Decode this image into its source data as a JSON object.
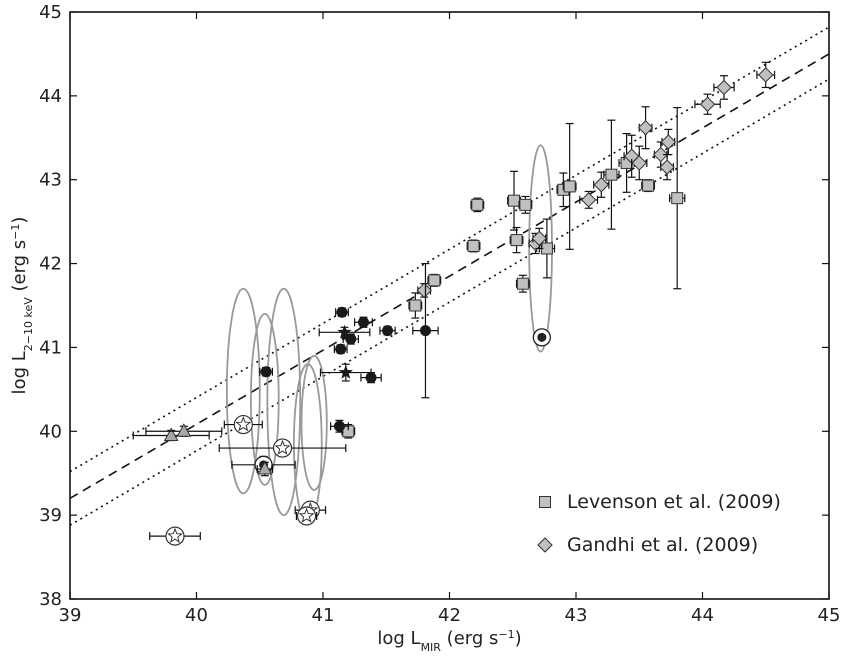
{
  "chart_data": {
    "type": "scatter",
    "title": "",
    "xlabel": {
      "base": "log L",
      "sub": "MIR",
      "unit": " (erg s",
      "exp": "−1",
      "close": ")"
    },
    "ylabel": {
      "base": "log L",
      "sub": "2−10  keV",
      "unit": " (erg s",
      "exp": "−1",
      "close": ")"
    },
    "xlim": [
      39,
      45
    ],
    "ylim": [
      38,
      45
    ],
    "xticks": [
      "39",
      "40",
      "41",
      "42",
      "43",
      "44",
      "45"
    ],
    "yticks": [
      "38",
      "39",
      "40",
      "41",
      "42",
      "43",
      "44",
      "45"
    ],
    "grid": false,
    "legend_position": "lower-right",
    "relations": [
      {
        "style": "dashed",
        "x": [
          39,
          45
        ],
        "y": [
          39.2,
          44.5
        ]
      },
      {
        "style": "dotted",
        "x": [
          39,
          45
        ],
        "y": [
          39.52,
          44.82
        ]
      },
      {
        "style": "dotted",
        "x": [
          39,
          45
        ],
        "y": [
          38.88,
          44.2
        ]
      }
    ],
    "series": [
      {
        "name": "Levenson et al. (2009)",
        "marker": "square",
        "color": "#c0c0c0",
        "points": [
          {
            "x": 42.22,
            "y": 42.7,
            "xerr": 0.05,
            "yerr": 0.08
          },
          {
            "x": 42.19,
            "y": 42.21,
            "xerr": 0.05,
            "yerr": 0.07
          },
          {
            "x": 42.51,
            "y": 42.75,
            "xerr": 0.05,
            "yerr": 0.35
          },
          {
            "x": 42.6,
            "y": 42.7,
            "xerr": 0.05,
            "yerr": 0.1
          },
          {
            "x": 42.53,
            "y": 42.28,
            "xerr": 0.05,
            "yerr": 0.15
          },
          {
            "x": 42.58,
            "y": 41.76,
            "xerr": 0.05,
            "yerr": 0.1
          },
          {
            "x": 42.77,
            "y": 42.18,
            "xerr": 0.06,
            "yerr": 0.35
          },
          {
            "x": 42.9,
            "y": 42.88,
            "xerr": 0.05,
            "yerr": 0.2
          },
          {
            "x": 42.95,
            "y": 42.92,
            "xerr": 0.05,
            "yerr": 0.75
          },
          {
            "x": 43.28,
            "y": 43.06,
            "xerr": 0.06,
            "yerr": 0.65
          },
          {
            "x": 43.4,
            "y": 43.2,
            "xerr": 0.06,
            "yerr": 0.35
          },
          {
            "x": 43.57,
            "y": 42.93,
            "xerr": 0.05,
            "yerr": 0.07
          },
          {
            "x": 43.8,
            "y": 42.78,
            "xerr": 0.06,
            "yerr": 1.08
          },
          {
            "x": 41.88,
            "y": 41.8,
            "xerr": 0.05,
            "yerr": 0.07
          },
          {
            "x": 41.73,
            "y": 41.5,
            "xerr": 0.05,
            "yerr": 0.15
          },
          {
            "x": 41.2,
            "y": 40.0,
            "xerr": 0.05,
            "yerr": 0.08
          }
        ]
      },
      {
        "name": "Gandhi et al. (2009)",
        "marker": "diamond",
        "color": "#c0c0c0",
        "points": [
          {
            "x": 41.8,
            "y": 41.68,
            "xerr": 0.05,
            "yerr": 0.08
          },
          {
            "x": 42.68,
            "y": 42.24,
            "xerr": 0.05,
            "yerr": 0.12
          },
          {
            "x": 42.71,
            "y": 42.3,
            "xerr": 0.05,
            "yerr": 0.12
          },
          {
            "x": 43.1,
            "y": 42.76,
            "xerr": 0.07,
            "yerr": 0.1
          },
          {
            "x": 43.2,
            "y": 42.94,
            "xerr": 0.06,
            "yerr": 0.15
          },
          {
            "x": 43.44,
            "y": 43.28,
            "xerr": 0.06,
            "yerr": 0.25
          },
          {
            "x": 43.5,
            "y": 43.2,
            "xerr": 0.06,
            "yerr": 0.2
          },
          {
            "x": 43.55,
            "y": 43.62,
            "xerr": 0.05,
            "yerr": 0.25
          },
          {
            "x": 43.67,
            "y": 43.3,
            "xerr": 0.05,
            "yerr": 0.15
          },
          {
            "x": 43.72,
            "y": 43.15,
            "xerr": 0.05,
            "yerr": 0.15
          },
          {
            "x": 43.73,
            "y": 43.45,
            "xerr": 0.05,
            "yerr": 0.15
          },
          {
            "x": 44.04,
            "y": 43.9,
            "xerr": 0.1,
            "yerr": 0.12
          },
          {
            "x": 44.17,
            "y": 44.1,
            "xerr": 0.08,
            "yerr": 0.14
          },
          {
            "x": 44.5,
            "y": 44.25,
            "xerr": 0.07,
            "yerr": 0.15
          }
        ]
      },
      {
        "marker": "circle",
        "color": "#1a1a1a",
        "points": [
          {
            "x": 40.55,
            "y": 40.71,
            "xerr": 0.05,
            "yerr": 0.05
          },
          {
            "x": 41.15,
            "y": 41.42,
            "xerr": 0.05,
            "yerr": 0.05
          },
          {
            "x": 41.14,
            "y": 40.98,
            "xerr": 0.05,
            "yerr": 0.05
          },
          {
            "x": 41.32,
            "y": 41.3,
            "xerr": 0.07,
            "yerr": 0.06
          },
          {
            "x": 41.22,
            "y": 41.1,
            "xerr": 0.06,
            "yerr": 0.06
          },
          {
            "x": 41.51,
            "y": 41.2,
            "xerr": 0.06,
            "yerr": 0.05
          },
          {
            "x": 41.38,
            "y": 40.64,
            "xerr": 0.08,
            "yerr": 0.06
          },
          {
            "x": 41.13,
            "y": 40.06,
            "xerr": 0.07,
            "yerr": 0.07
          },
          {
            "x": 41.81,
            "y": 41.2,
            "xerr": 0.1,
            "yerr": 0.8
          }
        ]
      },
      {
        "marker": "star",
        "color": "#1a1a1a",
        "points": [
          {
            "x": 41.17,
            "y": 41.18,
            "xerr": 0.2,
            "yerr": 0.06
          },
          {
            "x": 41.18,
            "y": 40.7,
            "xerr": 0.2,
            "yerr": 0.1
          }
        ]
      },
      {
        "marker": "open-star",
        "color": "#ffffff",
        "points": [
          {
            "x": 40.37,
            "y": 40.08,
            "xerr": 0.15,
            "yerr": 0.06
          },
          {
            "x": 40.68,
            "y": 39.8,
            "xerr": 0.5,
            "yerr": 0.1
          },
          {
            "x": 40.9,
            "y": 39.06,
            "xerr": 0.12,
            "yerr": 0.06
          },
          {
            "x": 40.87,
            "y": 38.99,
            "xerr": 0.08,
            "yerr": 0.06
          },
          {
            "x": 39.83,
            "y": 38.75,
            "xerr": 0.2,
            "yerr": 0.08
          }
        ]
      },
      {
        "marker": "open-circle",
        "color": "#ffffff",
        "points": [
          {
            "x": 40.53,
            "y": 39.6,
            "xerr": 0.25,
            "yerr": 0.1
          },
          {
            "x": 42.73,
            "y": 41.12,
            "xerr": 0.05,
            "yerr": 0.05
          }
        ]
      },
      {
        "marker": "triangle",
        "color": "#a8a8a8",
        "points": [
          {
            "x": 39.8,
            "y": 39.95,
            "xerr": 0.3,
            "yerr": 0.06
          },
          {
            "x": 39.9,
            "y": 40.0,
            "xerr": 0.3,
            "yerr": 0.06
          },
          {
            "x": 40.54,
            "y": 39.55,
            "xerr": 0.06,
            "yerr": 0.08
          }
        ]
      }
    ],
    "ellipses": [
      {
        "cx": 40.37,
        "cy": 40.48,
        "rx": 0.13,
        "ry": 1.22
      },
      {
        "cx": 40.54,
        "cy": 40.38,
        "rx": 0.11,
        "ry": 1.02
      },
      {
        "cx": 40.69,
        "cy": 40.35,
        "rx": 0.13,
        "ry": 1.35
      },
      {
        "cx": 40.88,
        "cy": 39.85,
        "rx": 0.11,
        "ry": 0.95
      },
      {
        "cx": 40.93,
        "cy": 40.1,
        "rx": 0.1,
        "ry": 0.8
      },
      {
        "cx": 42.72,
        "cy": 42.18,
        "rx": 0.09,
        "ry": 1.23
      }
    ]
  }
}
